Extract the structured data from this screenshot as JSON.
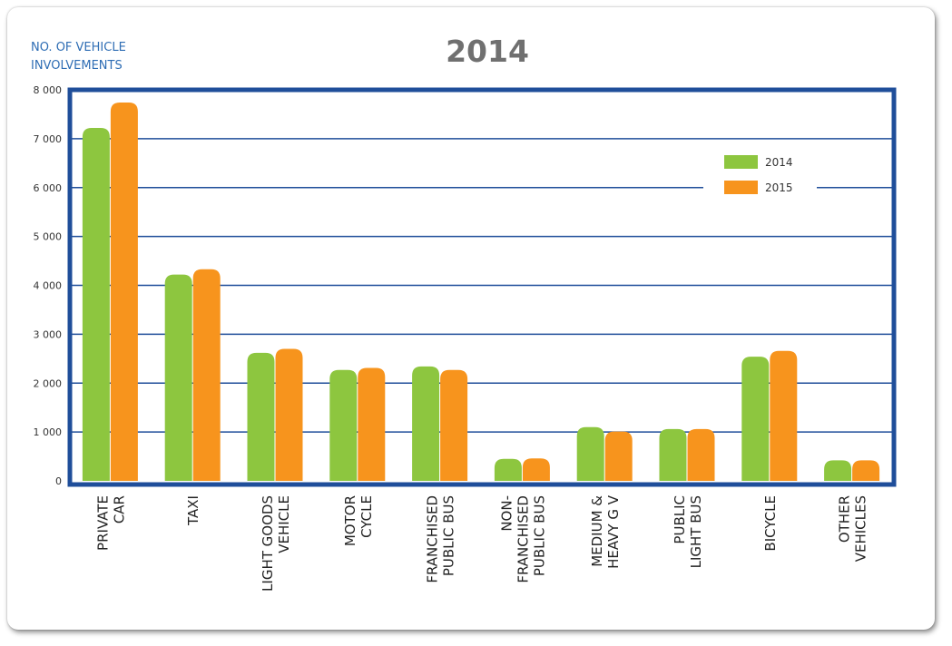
{
  "chart_data": {
    "type": "bar",
    "title": "2014",
    "ylabel": [
      "NO. OF VEHICLE",
      "INVOLVEMENTS"
    ],
    "ylim": [
      0,
      8000
    ],
    "yticks": [
      0,
      1000,
      2000,
      3000,
      4000,
      5000,
      6000,
      7000,
      8000
    ],
    "ytick_labels": [
      "0",
      "1 000",
      "2 000",
      "3 000",
      "4 000",
      "5 000",
      "6 000",
      "7 000",
      "8 000"
    ],
    "categories": [
      [
        "PRIVATE",
        "CAR"
      ],
      [
        "TAXI"
      ],
      [
        "LIGHT GOODS",
        "VEHICLE"
      ],
      [
        "MOTOR",
        "CYCLE"
      ],
      [
        "FRANCHISED",
        "PUBLIC BUS"
      ],
      [
        "NON-",
        "FRANCHISED",
        "PUBLIC BUS"
      ],
      [
        "MEDIUM &",
        "HEAVY G V"
      ],
      [
        "PUBLIC",
        "LIGHT BUS"
      ],
      [
        "BICYCLE"
      ],
      [
        "OTHER",
        "VEHICLES"
      ]
    ],
    "series": [
      {
        "name": "2014",
        "color": "#8dc63f",
        "values": [
          7220,
          4220,
          2620,
          2270,
          2340,
          450,
          1100,
          1060,
          2540,
          420
        ]
      },
      {
        "name": "2015",
        "color": "#f7941d",
        "values": [
          7740,
          4330,
          2700,
          2310,
          2270,
          460,
          1010,
          1060,
          2660,
          420
        ]
      }
    ],
    "grid": true,
    "legend": "top-right"
  },
  "colors": {
    "frame": "#1f4e9a",
    "grid": "#1f4e9a",
    "title": "#707070",
    "ylabel": "#2e6db4",
    "tick": "#333333"
  }
}
